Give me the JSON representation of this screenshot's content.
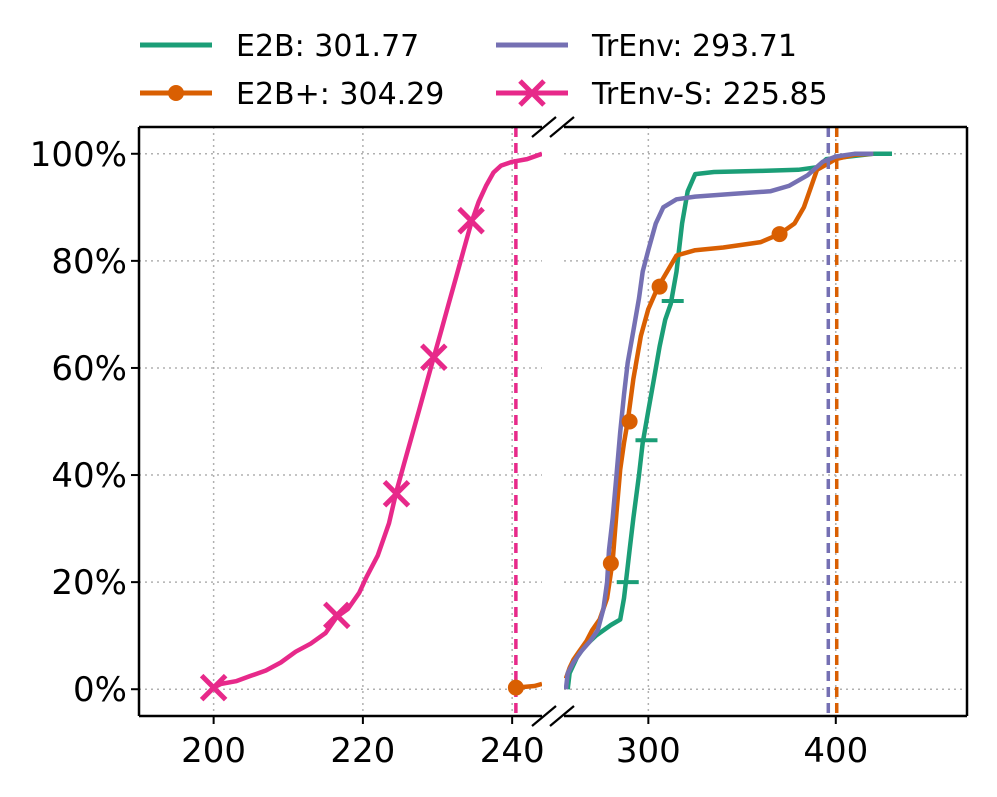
{
  "chart_data": {
    "type": "line",
    "title": "",
    "xlabel": "",
    "ylabel": "",
    "broken_x_axis": true,
    "left_panel": {
      "xlim": [
        190,
        244
      ],
      "xticks": [
        "200",
        "220",
        "240"
      ],
      "xtick_values": [
        200,
        220,
        240
      ]
    },
    "right_panel": {
      "xlim": [
        255,
        470
      ],
      "xticks": [
        "300",
        "400"
      ],
      "xtick_values": [
        300,
        400
      ]
    },
    "ylim": [
      -0.05,
      1.05
    ],
    "yticks": [
      "0%",
      "20%",
      "40%",
      "60%",
      "80%",
      "100%"
    ],
    "ytick_values": [
      0,
      0.2,
      0.4,
      0.6,
      0.8,
      1.0
    ],
    "grid": true,
    "legend_position": "top, above plot, 2 columns",
    "series": [
      {
        "name": "E2B: 301.77",
        "color": "#1b9e77",
        "marker": "hline",
        "vline": null,
        "points": [
          [
            257,
            0
          ],
          [
            258,
            0.03
          ],
          [
            262,
            0.06
          ],
          [
            266,
            0.08
          ],
          [
            272,
            0.1
          ],
          [
            280,
            0.12
          ],
          [
            285,
            0.13
          ],
          [
            287,
            0.17
          ],
          [
            288,
            0.2
          ],
          [
            290,
            0.26
          ],
          [
            292,
            0.32
          ],
          [
            295,
            0.4
          ],
          [
            297,
            0.46
          ],
          [
            300,
            0.52
          ],
          [
            303,
            0.58
          ],
          [
            306,
            0.64
          ],
          [
            309,
            0.69
          ],
          [
            312,
            0.72
          ],
          [
            315,
            0.78
          ],
          [
            318,
            0.87
          ],
          [
            321,
            0.93
          ],
          [
            325,
            0.962
          ],
          [
            335,
            0.966
          ],
          [
            360,
            0.968
          ],
          [
            380,
            0.97
          ],
          [
            390,
            0.975
          ],
          [
            395,
            0.99
          ],
          [
            420,
            1.0
          ],
          [
            430,
            1.0
          ]
        ],
        "markers": [
          [
            289,
            0.2
          ],
          [
            299,
            0.465
          ],
          [
            313,
            0.725
          ]
        ]
      },
      {
        "name": "E2B+: 304.29",
        "color": "#d95f02",
        "marker": "circle",
        "vline": 400.5,
        "points": [
          [
            240.5,
            0.003
          ],
          [
            243,
            0.006
          ],
          [
            244,
            0.01
          ],
          [
            256,
            0.02
          ],
          [
            258,
            0.04
          ],
          [
            260,
            0.055
          ],
          [
            263,
            0.07
          ],
          [
            267,
            0.09
          ],
          [
            270,
            0.11
          ],
          [
            274,
            0.13
          ],
          [
            278,
            0.17
          ],
          [
            281,
            0.24
          ],
          [
            283,
            0.33
          ],
          [
            285,
            0.41
          ],
          [
            287,
            0.46
          ],
          [
            289,
            0.5
          ],
          [
            292,
            0.58
          ],
          [
            296,
            0.66
          ],
          [
            300,
            0.71
          ],
          [
            305,
            0.75
          ],
          [
            310,
            0.78
          ],
          [
            315,
            0.81
          ],
          [
            325,
            0.82
          ],
          [
            340,
            0.825
          ],
          [
            360,
            0.835
          ],
          [
            370,
            0.85
          ],
          [
            378,
            0.87
          ],
          [
            383,
            0.9
          ],
          [
            387,
            0.94
          ],
          [
            390,
            0.97
          ],
          [
            395,
            0.98
          ],
          [
            400,
            0.99
          ],
          [
            410,
            0.998
          ],
          [
            420,
            1.0
          ]
        ],
        "markers": [
          [
            240.5,
            0.003
          ],
          [
            280,
            0.235
          ],
          [
            290,
            0.5
          ],
          [
            306,
            0.752
          ],
          [
            370,
            0.85
          ]
        ]
      },
      {
        "name": "TrEnv: 293.71",
        "color": "#7570b3",
        "marker": "none",
        "vline": 396,
        "points": [
          [
            256,
            0
          ],
          [
            257,
            0.03
          ],
          [
            260,
            0.05
          ],
          [
            264,
            0.07
          ],
          [
            269,
            0.09
          ],
          [
            273,
            0.11
          ],
          [
            276,
            0.15
          ],
          [
            278,
            0.2
          ],
          [
            279,
            0.26
          ],
          [
            281,
            0.32
          ],
          [
            283,
            0.4
          ],
          [
            285,
            0.48
          ],
          [
            287,
            0.55
          ],
          [
            289,
            0.61
          ],
          [
            292,
            0.67
          ],
          [
            295,
            0.73
          ],
          [
            297,
            0.78
          ],
          [
            300,
            0.82
          ],
          [
            304,
            0.87
          ],
          [
            308,
            0.9
          ],
          [
            315,
            0.915
          ],
          [
            325,
            0.92
          ],
          [
            345,
            0.925
          ],
          [
            365,
            0.93
          ],
          [
            375,
            0.94
          ],
          [
            385,
            0.96
          ],
          [
            393,
            0.985
          ],
          [
            400,
            0.995
          ],
          [
            410,
            1.0
          ],
          [
            420,
            1.0
          ]
        ],
        "markers": []
      },
      {
        "name": "TrEnv-S: 225.85",
        "color": "#e7298a",
        "marker": "x",
        "vline": 240.5,
        "points": [
          [
            200,
            0.003
          ],
          [
            201,
            0.01
          ],
          [
            203,
            0.015
          ],
          [
            205,
            0.025
          ],
          [
            207,
            0.035
          ],
          [
            209,
            0.05
          ],
          [
            211,
            0.07
          ],
          [
            213,
            0.085
          ],
          [
            215,
            0.105
          ],
          [
            216.5,
            0.135
          ],
          [
            218,
            0.15
          ],
          [
            219.5,
            0.18
          ],
          [
            220.5,
            0.21
          ],
          [
            222,
            0.25
          ],
          [
            223.5,
            0.31
          ],
          [
            224.5,
            0.37
          ],
          [
            225.5,
            0.42
          ],
          [
            226.5,
            0.47
          ],
          [
            227.5,
            0.52
          ],
          [
            228.5,
            0.57
          ],
          [
            229.5,
            0.62
          ],
          [
            230.5,
            0.67
          ],
          [
            231.5,
            0.72
          ],
          [
            232.5,
            0.77
          ],
          [
            233.5,
            0.82
          ],
          [
            234.5,
            0.87
          ],
          [
            235.5,
            0.91
          ],
          [
            236.5,
            0.94
          ],
          [
            237.5,
            0.965
          ],
          [
            238.5,
            0.978
          ],
          [
            240,
            0.985
          ],
          [
            242,
            0.99
          ],
          [
            244,
            1.0
          ]
        ],
        "markers": [
          [
            200,
            0.003
          ],
          [
            216.5,
            0.138
          ],
          [
            224.5,
            0.365
          ],
          [
            229.5,
            0.62
          ],
          [
            234.5,
            0.875
          ]
        ]
      }
    ]
  }
}
